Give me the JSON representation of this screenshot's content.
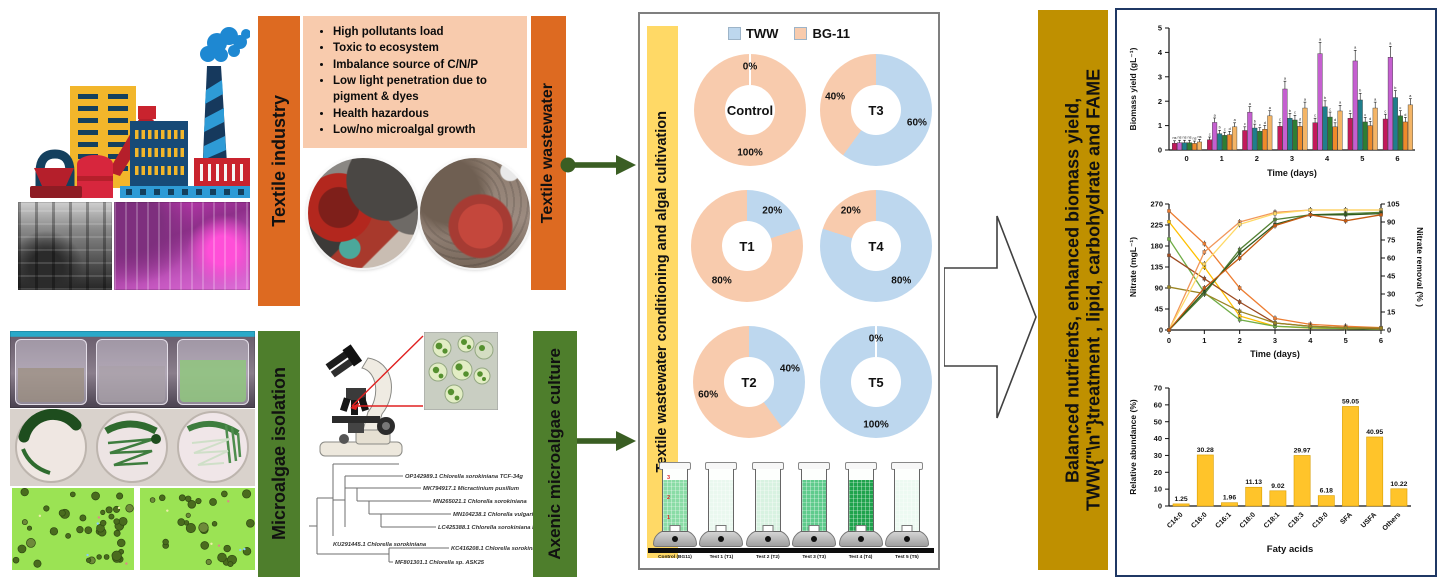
{
  "left_top": {
    "industry_label": "Textile industry",
    "wastewater_label": "Textile wastewater",
    "issues": [
      "High pollutants load",
      "Toxic to ecosystem",
      "Imbalance source of C/N/P",
      "Low light penetration due to pigment & dyes",
      "Health hazardous",
      "Low/no microalgal growth"
    ]
  },
  "left_bottom": {
    "isolation_label": "Microalgae isolation",
    "culture_label": "Axenic microalgae culture",
    "tree_labels": [
      "OP142989.1 Chlorella sorokiniana TCF-34g",
      "MK794917.1 Micractinium pusillum",
      "MN265021.1 Chlorella sorokiniana",
      "MN104238.1 Chlorella vulgaris",
      "LC425388.1 Chlorella sorokiniana NIES-4216",
      "KU291445.1 Chlorella sorokiniana",
      "KC416208.1 Chlorella sorokiniana",
      "MF801301.1 Chlorella sp. ASK25"
    ]
  },
  "middle_panel": {
    "bar_label": "Textile wastewater conditioning and algal cultivation",
    "legend": [
      {
        "label": "TWW",
        "color": "#BDD7EE"
      },
      {
        "label": "BG-11",
        "color": "#F8CBAD"
      }
    ],
    "bottles": [
      {
        "label": "Control (BG11)",
        "fill": "#8ADCA6"
      },
      {
        "label": "Test 1 (T1)",
        "fill": "#EAF8EF"
      },
      {
        "label": "Test 2 (T2)",
        "fill": "#D8F2E1"
      },
      {
        "label": "Test 3 (T3)",
        "fill": "#5FCB8C"
      },
      {
        "label": "Test 4 (T4)",
        "fill": "#1FA34D"
      },
      {
        "label": "Test 5 (T5)",
        "fill": "#EDFAF2"
      }
    ],
    "bottle_marks": [
      "3",
      "2",
      "1"
    ]
  },
  "outcome": {
    "line1": "Balanced nutrients, enhanced biomass yield, TWW",
    "line2": "treatment , lipid, carbohydrate and FAME"
  },
  "chart_data": [
    {
      "id": "medium-composition-donuts",
      "type": "pie",
      "legend": [
        "TWW",
        "BG-11"
      ],
      "colors": {
        "TWW": "#BDD7EE",
        "BG-11": "#F8CBAD"
      },
      "donuts": [
        {
          "name": "Control",
          "TWW": 0,
          "BG11": 100
        },
        {
          "name": "T3",
          "TWW": 60,
          "BG11": 40
        },
        {
          "name": "T1",
          "TWW": 20,
          "BG11": 80
        },
        {
          "name": "T4",
          "TWW": 80,
          "BG11": 20
        },
        {
          "name": "T2",
          "TWW": 40,
          "BG11": 60
        },
        {
          "name": "T5",
          "TWW": 100,
          "BG11": 0
        }
      ]
    },
    {
      "id": "biomass-yield",
      "type": "bar",
      "title": "",
      "xlabel": "Time (days)",
      "ylabel": "Biomass yield (gL⁻¹)",
      "ylim": [
        0,
        5
      ],
      "yticks": [
        0,
        1,
        2,
        3,
        4,
        5
      ],
      "categories": [
        0,
        1,
        2,
        3,
        4,
        5,
        6
      ],
      "day0_letter": "ns",
      "series": [
        {
          "name": "series-1",
          "color": "#C2185B",
          "letter": "c",
          "values": [
            0.28,
            0.42,
            0.8,
            0.97,
            1.12,
            1.3,
            1.27
          ]
        },
        {
          "name": "series-2",
          "color": "#C55FD0",
          "letter": "a",
          "values": [
            0.3,
            1.13,
            1.55,
            2.5,
            3.95,
            3.65,
            3.8
          ]
        },
        {
          "name": "series-3",
          "color": "#1F7E8C",
          "letter": "b",
          "values": [
            0.3,
            0.67,
            0.9,
            1.3,
            1.77,
            2.05,
            2.15
          ]
        },
        {
          "name": "series-4",
          "color": "#2E7D32",
          "letter": "c",
          "values": [
            0.3,
            0.6,
            0.77,
            1.23,
            1.35,
            1.15,
            1.4
          ]
        },
        {
          "name": "series-5",
          "color": "#EE8A2A",
          "letter": "d",
          "values": [
            0.27,
            0.63,
            0.85,
            0.97,
            0.95,
            1.0,
            1.15
          ]
        },
        {
          "name": "series-6",
          "color": "#F4B566",
          "letter": "a",
          "values": [
            0.33,
            0.95,
            1.4,
            1.72,
            1.6,
            1.72,
            1.85
          ]
        }
      ],
      "error_fraction": 0.1
    },
    {
      "id": "nitrate-removal",
      "type": "line",
      "x": [
        0,
        1,
        2,
        3,
        4,
        5,
        6
      ],
      "xlabel": "Time (days)",
      "ylabel_left": "Nitrate (mgL⁻¹)",
      "ylim_left": [
        0,
        270
      ],
      "yticks_left": [
        0,
        45,
        90,
        135,
        180,
        225,
        270
      ],
      "ylabel_right": "Nitrate removal (% )",
      "ylim_right": [
        0,
        105
      ],
      "yticks_right": [
        0,
        15,
        30,
        45,
        60,
        75,
        90,
        105
      ],
      "nitrate_series": [
        {
          "color": "#ED7D31",
          "values": [
            255,
            185,
            90,
            25,
            12,
            8,
            5
          ]
        },
        {
          "color": "#FFC000",
          "values": [
            232,
            135,
            30,
            8,
            4,
            3,
            2
          ]
        },
        {
          "color": "#70AD47",
          "values": [
            195,
            80,
            22,
            8,
            5,
            3,
            2
          ]
        },
        {
          "color": "#9C4A1F",
          "values": [
            160,
            110,
            60,
            15,
            8,
            5,
            3
          ]
        },
        {
          "color": "#9A8422",
          "values": [
            92,
            78,
            40,
            15,
            8,
            5,
            4
          ]
        }
      ],
      "removal_series": [
        {
          "color": "#F1975A",
          "values": [
            0,
            65,
            90,
            98,
            100,
            100,
            100
          ]
        },
        {
          "color": "#FFD966",
          "values": [
            0,
            55,
            88,
            97,
            100,
            100,
            100
          ]
        },
        {
          "color": "#538135",
          "values": [
            0,
            30,
            67,
            92,
            96,
            97,
            98
          ]
        },
        {
          "color": "#2F5A1F",
          "values": [
            0,
            32,
            64,
            88,
            96,
            96,
            97
          ]
        },
        {
          "color": "#C55A11",
          "values": [
            0,
            35,
            60,
            87,
            96,
            91,
            96
          ]
        }
      ]
    },
    {
      "id": "fame-profile",
      "type": "bar",
      "xlabel": "Faty acids",
      "ylabel": "Relative abundance (%)",
      "ylim": [
        0,
        70
      ],
      "yticks": [
        0,
        10,
        20,
        30,
        40,
        50,
        60,
        70
      ],
      "color": "#FFC42A",
      "categories": [
        "C14:0",
        "C16:0",
        "C16:1",
        "C18:0",
        "C18:1",
        "C18:3",
        "C19:0",
        "SFA",
        "USFA",
        "Others"
      ],
      "values": [
        1.25,
        30.28,
        1.96,
        11.13,
        9.02,
        29.97,
        6.18,
        59.05,
        40.95,
        10.22
      ]
    }
  ]
}
